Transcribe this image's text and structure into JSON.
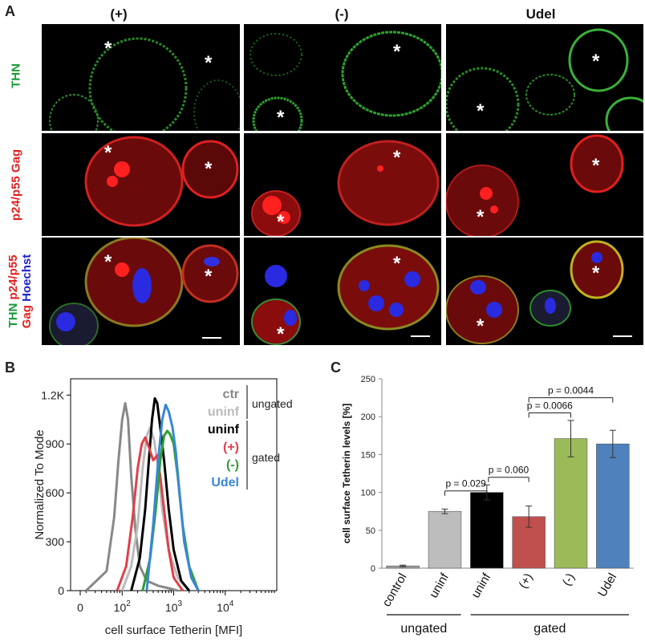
{
  "panels": {
    "a": "A",
    "b": "B",
    "c": "C"
  },
  "panel_a": {
    "columns": [
      "(+)",
      "(-)",
      "Udel"
    ],
    "rows": [
      {
        "parts": [
          {
            "text": "THN",
            "color": "#1a9a3a"
          }
        ]
      },
      {
        "parts": [
          {
            "text": "p24/p55 Gag",
            "color": "#e0201f"
          }
        ]
      },
      {
        "parts": [
          {
            "text": "THN",
            "color": "#1a9a3a"
          },
          {
            "text": " p24/p55",
            "color": "#e0201f"
          },
          {
            "text": " Hoechst",
            "color": "#2222cc"
          },
          {
            "text": "Gag",
            "color": "#e0201f",
            "line": 2
          }
        ]
      }
    ],
    "marker": "*"
  },
  "chart_data": [
    {
      "type": "line",
      "xlabel": "cell surface Tetherin [MFI]",
      "ylabel": "Normalized To Mode",
      "x_scale": "log",
      "x_ticks": [
        "0",
        "10^2",
        "10^3",
        "10^4"
      ],
      "y_ticks": [
        "0",
        "300",
        "600",
        "900",
        "1.2K"
      ],
      "ylim": [
        0,
        1300
      ],
      "legend": {
        "ungated_label": "ungated",
        "gated_label": "gated",
        "entries": [
          {
            "name": "ctr",
            "color": "#888888",
            "group": "ungated"
          },
          {
            "name": "uninf",
            "color": "#bbbbbb",
            "group": "ungated"
          },
          {
            "name": "uninf",
            "color": "#000000",
            "group": "gated"
          },
          {
            "name": "(+)",
            "color": "#e0404a",
            "group": "gated"
          },
          {
            "name": "(-)",
            "color": "#2ea02e",
            "group": "gated"
          },
          {
            "name": "Udel",
            "color": "#3a86d8",
            "group": "gated"
          }
        ]
      },
      "series": [
        {
          "name": "ctr",
          "color": "#888888",
          "x": [
            20,
            50,
            70,
            85,
            100,
            115,
            130,
            150,
            180,
            220,
            300,
            500,
            800,
            1200
          ],
          "y": [
            0,
            120,
            450,
            800,
            1050,
            1150,
            1050,
            700,
            380,
            150,
            60,
            30,
            15,
            0
          ]
        },
        {
          "name": "uninf",
          "color": "#bbbbbb",
          "x": [
            100,
            150,
            200,
            250,
            300,
            350,
            420,
            500,
            600,
            800,
            1200,
            2000
          ],
          "y": [
            0,
            150,
            400,
            750,
            950,
            1000,
            920,
            750,
            500,
            250,
            80,
            0
          ]
        },
        {
          "name": "uninf",
          "color": "#000000",
          "x": [
            150,
            220,
            280,
            330,
            380,
            430,
            480,
            550,
            650,
            800,
            1000,
            1400,
            2000
          ],
          "y": [
            0,
            200,
            500,
            800,
            1050,
            1180,
            1150,
            1000,
            800,
            500,
            250,
            60,
            0
          ]
        },
        {
          "name": "(+)",
          "color": "#e0404a",
          "x": [
            80,
            120,
            160,
            200,
            240,
            280,
            330,
            400,
            480,
            550,
            650,
            800,
            1000,
            1500
          ],
          "y": [
            0,
            150,
            450,
            750,
            900,
            940,
            880,
            800,
            830,
            700,
            500,
            250,
            80,
            0
          ]
        },
        {
          "name": "(-)",
          "color": "#2ea02e",
          "x": [
            250,
            350,
            450,
            550,
            650,
            750,
            850,
            1000,
            1200,
            1500,
            2000,
            3000
          ],
          "y": [
            0,
            200,
            500,
            800,
            950,
            980,
            960,
            900,
            700,
            400,
            150,
            0
          ]
        },
        {
          "name": "Udel",
          "color": "#3a86d8",
          "x": [
            300,
            400,
            500,
            600,
            700,
            800,
            950,
            1100,
            1300,
            1600,
            2200,
            3000
          ],
          "y": [
            0,
            400,
            800,
            1050,
            1140,
            1100,
            1000,
            850,
            600,
            300,
            80,
            0
          ]
        }
      ]
    },
    {
      "type": "bar",
      "ylabel": "cell surface Tetherin levels [%]",
      "ylim": [
        0,
        250
      ],
      "y_ticks": [
        "0",
        "50",
        "100",
        "150",
        "200",
        "250"
      ],
      "categories": [
        "control",
        "uninf",
        "uninf",
        "(+)",
        "(-)",
        "Udel"
      ],
      "values": [
        3,
        75,
        100,
        68,
        171,
        164
      ],
      "errors": [
        1,
        3,
        10,
        14,
        24,
        18
      ],
      "colors": [
        "#a0a0a0",
        "#bdbdbd",
        "#000000",
        "#c0504d",
        "#9bbb59",
        "#4f81bd"
      ],
      "groups": [
        {
          "label": "ungated",
          "from": 0,
          "to": 1
        },
        {
          "label": "gated",
          "from": 2,
          "to": 5
        }
      ],
      "annotations": [
        {
          "label": "p = 0.029",
          "from": 1,
          "to": 2
        },
        {
          "label": "p = 0.060",
          "from": 2,
          "to": 3
        },
        {
          "label": "p = 0.0066",
          "from": 3,
          "to": 4
        },
        {
          "label": "p = 0.0044",
          "from": 3,
          "to": 5
        }
      ]
    }
  ]
}
